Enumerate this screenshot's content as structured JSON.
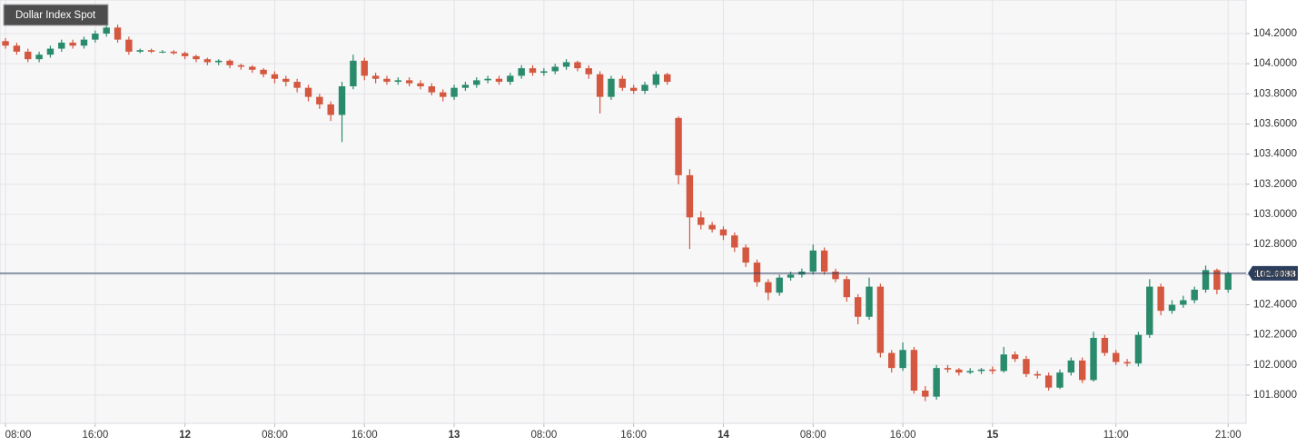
{
  "chart_data": {
    "type": "candlestick",
    "title": "Dollar Index Spot",
    "up_color": "#2a8a6c",
    "down_color": "#d4573f",
    "grid": true,
    "last_price": 102.6088,
    "last_price_label": "102.6088",
    "last_price_color": "#2c3e5e",
    "xlim": [
      -0.49,
      110.6
    ],
    "xticks": [
      {
        "value": 0,
        "label": "08:00"
      },
      {
        "value": 8,
        "label": "16:00"
      },
      {
        "value": 16,
        "label": "12"
      },
      {
        "value": 24,
        "label": "08:00"
      },
      {
        "value": 32,
        "label": "16:00"
      },
      {
        "value": 40,
        "label": "13"
      },
      {
        "value": 48,
        "label": "08:00"
      },
      {
        "value": 56,
        "label": "16:00"
      },
      {
        "value": 64,
        "label": "14"
      },
      {
        "value": 72,
        "label": "08:00"
      },
      {
        "value": 80,
        "label": "16:00"
      },
      {
        "value": 88,
        "label": "15"
      },
      {
        "value": 99,
        "label": "11:00"
      },
      {
        "value": 109,
        "label": "21:00"
      }
    ],
    "ylim": [
      101.613,
      104.423
    ],
    "yticks": [
      {
        "value": 101.8,
        "label": "101.8000"
      },
      {
        "value": 102.0,
        "label": "102.0000"
      },
      {
        "value": 102.2,
        "label": "102.2000"
      },
      {
        "value": 102.4,
        "label": "102.4000"
      },
      {
        "value": 102.6,
        "label": "102.6000"
      },
      {
        "value": 102.8,
        "label": "102.8000"
      },
      {
        "value": 103.0,
        "label": "103.0000"
      },
      {
        "value": 103.2,
        "label": "103.2000"
      },
      {
        "value": 103.4,
        "label": "103.4000"
      },
      {
        "value": 103.6,
        "label": "103.6000"
      },
      {
        "value": 103.8,
        "label": "103.8000"
      },
      {
        "value": 104.0,
        "label": "104.0000"
      },
      {
        "value": 104.2,
        "label": "104.2000"
      }
    ],
    "open": [
      104.15,
      104.12,
      104.08,
      104.03,
      104.06,
      104.1,
      104.14,
      104.12,
      104.16,
      104.2,
      104.24,
      104.16,
      104.08,
      104.09,
      104.08,
      104.08,
      104.07,
      104.05,
      104.03,
      104.01,
      104.02,
      103.99,
      103.98,
      103.96,
      103.93,
      103.9,
      103.88,
      103.84,
      103.78,
      103.73,
      103.66,
      103.85,
      104.02,
      103.92,
      103.9,
      103.88,
      103.89,
      103.87,
      103.85,
      103.81,
      103.78,
      103.84,
      103.86,
      103.89,
      103.9,
      103.88,
      103.92,
      103.97,
      103.94,
      103.95,
      103.98,
      104.01,
      103.97,
      103.93,
      103.78,
      103.9,
      103.84,
      103.82,
      103.86,
      103.93,
      103.64,
      103.26,
      102.98,
      102.93,
      102.9,
      102.86,
      102.78,
      102.68,
      102.55,
      102.48,
      102.58,
      102.6,
      102.62,
      102.76,
      102.62,
      102.57,
      102.45,
      102.32,
      102.52,
      102.08,
      101.98,
      102.1,
      101.83,
      101.79,
      101.98,
      101.97,
      101.95,
      101.96,
      101.97,
      101.96,
      102.07,
      102.04,
      101.94,
      101.93,
      101.85,
      101.95,
      102.03,
      101.9,
      102.18,
      102.08,
      102.02,
      102.01,
      102.2,
      102.52,
      102.36,
      102.4,
      102.43,
      102.5,
      102.63,
      102.5
    ],
    "high": [
      104.17,
      104.14,
      104.1,
      104.08,
      104.12,
      104.16,
      104.16,
      104.18,
      104.22,
      104.26,
      104.26,
      104.18,
      104.1,
      104.1,
      104.09,
      104.09,
      104.08,
      104.06,
      104.04,
      104.03,
      104.03,
      104.0,
      103.99,
      103.97,
      103.95,
      103.92,
      103.9,
      103.86,
      103.8,
      103.75,
      103.88,
      104.06,
      104.04,
      103.94,
      103.92,
      103.91,
      103.91,
      103.89,
      103.87,
      103.83,
      103.86,
      103.88,
      103.91,
      103.92,
      103.92,
      103.94,
      103.99,
      103.99,
      103.97,
      104.0,
      104.03,
      104.02,
      103.99,
      103.95,
      103.92,
      103.92,
      103.86,
      103.88,
      103.95,
      103.94,
      103.65,
      103.3,
      103.02,
      102.95,
      102.92,
      102.88,
      102.8,
      102.7,
      102.57,
      102.6,
      102.62,
      102.64,
      102.8,
      102.78,
      102.64,
      102.59,
      102.47,
      102.58,
      102.54,
      102.1,
      102.15,
      102.12,
      101.86,
      102.0,
      102.0,
      101.98,
      101.98,
      101.98,
      101.99,
      102.12,
      102.09,
      102.06,
      101.96,
      101.95,
      101.97,
      102.05,
      102.05,
      102.22,
      102.2,
      102.1,
      102.04,
      102.22,
      102.57,
      102.54,
      102.43,
      102.46,
      102.52,
      102.66,
      102.64,
      102.62
    ],
    "low": [
      104.1,
      104.06,
      104.01,
      104.01,
      104.04,
      104.08,
      104.1,
      104.1,
      104.14,
      104.18,
      104.14,
      104.06,
      104.07,
      104.07,
      104.07,
      104.06,
      104.03,
      104.01,
      103.99,
      103.99,
      103.97,
      103.96,
      103.94,
      103.91,
      103.87,
      103.85,
      103.81,
      103.75,
      103.7,
      103.62,
      103.48,
      103.83,
      103.89,
      103.87,
      103.86,
      103.86,
      103.85,
      103.83,
      103.79,
      103.75,
      103.76,
      103.82,
      103.84,
      103.87,
      103.86,
      103.86,
      103.9,
      103.92,
      103.92,
      103.93,
      103.96,
      103.95,
      103.9,
      103.67,
      103.76,
      103.82,
      103.8,
      103.8,
      103.84,
      103.86,
      103.2,
      102.77,
      102.9,
      102.88,
      102.83,
      102.75,
      102.65,
      102.52,
      102.43,
      102.46,
      102.56,
      102.58,
      102.6,
      102.6,
      102.55,
      102.42,
      102.27,
      102.3,
      102.05,
      101.95,
      101.96,
      101.81,
      101.76,
      101.77,
      101.95,
      101.93,
      101.94,
      101.94,
      101.94,
      101.95,
      102.02,
      101.92,
      101.91,
      101.83,
      101.84,
      101.93,
      101.88,
      101.89,
      102.06,
      102.0,
      101.99,
      101.99,
      102.18,
      102.33,
      102.34,
      102.38,
      102.41,
      102.48,
      102.47,
      102.48
    ],
    "close": [
      104.12,
      104.08,
      104.03,
      104.06,
      104.1,
      104.14,
      104.12,
      104.16,
      104.2,
      104.24,
      104.16,
      104.08,
      104.09,
      104.08,
      104.08,
      104.07,
      104.05,
      104.03,
      104.01,
      104.02,
      103.99,
      103.98,
      103.96,
      103.93,
      103.9,
      103.88,
      103.84,
      103.78,
      103.73,
      103.66,
      103.85,
      104.02,
      103.92,
      103.9,
      103.88,
      103.89,
      103.87,
      103.85,
      103.81,
      103.78,
      103.84,
      103.86,
      103.89,
      103.9,
      103.88,
      103.92,
      103.97,
      103.94,
      103.95,
      103.98,
      104.01,
      103.97,
      103.93,
      103.78,
      103.9,
      103.84,
      103.82,
      103.86,
      103.93,
      103.88,
      103.26,
      102.98,
      102.93,
      102.9,
      102.86,
      102.78,
      102.68,
      102.55,
      102.48,
      102.58,
      102.6,
      102.62,
      102.76,
      102.62,
      102.57,
      102.45,
      102.32,
      102.52,
      102.08,
      101.98,
      102.1,
      101.83,
      101.79,
      101.98,
      101.97,
      101.95,
      101.96,
      101.97,
      101.96,
      102.07,
      102.04,
      101.94,
      101.93,
      101.85,
      101.95,
      102.03,
      101.9,
      102.18,
      102.08,
      102.02,
      102.01,
      102.2,
      102.52,
      102.36,
      102.4,
      102.43,
      102.5,
      102.63,
      102.5,
      102.6088
    ]
  }
}
